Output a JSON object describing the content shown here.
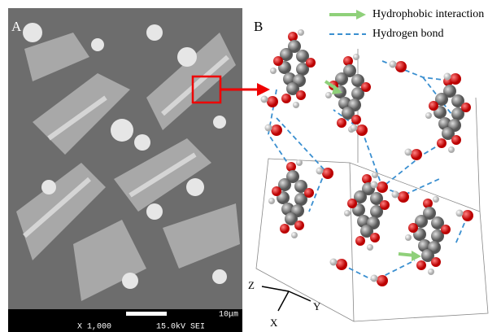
{
  "panel_a": {
    "label": "A",
    "scale_bar": "10μm",
    "magnification": "X 1,000",
    "voltage": "15.0kV SEI"
  },
  "panel_b": {
    "label": "B",
    "legend": [
      "Hydrophobic interaction",
      "Hydrogen bond"
    ],
    "axes": [
      "Z",
      "Y",
      "X"
    ]
  }
}
